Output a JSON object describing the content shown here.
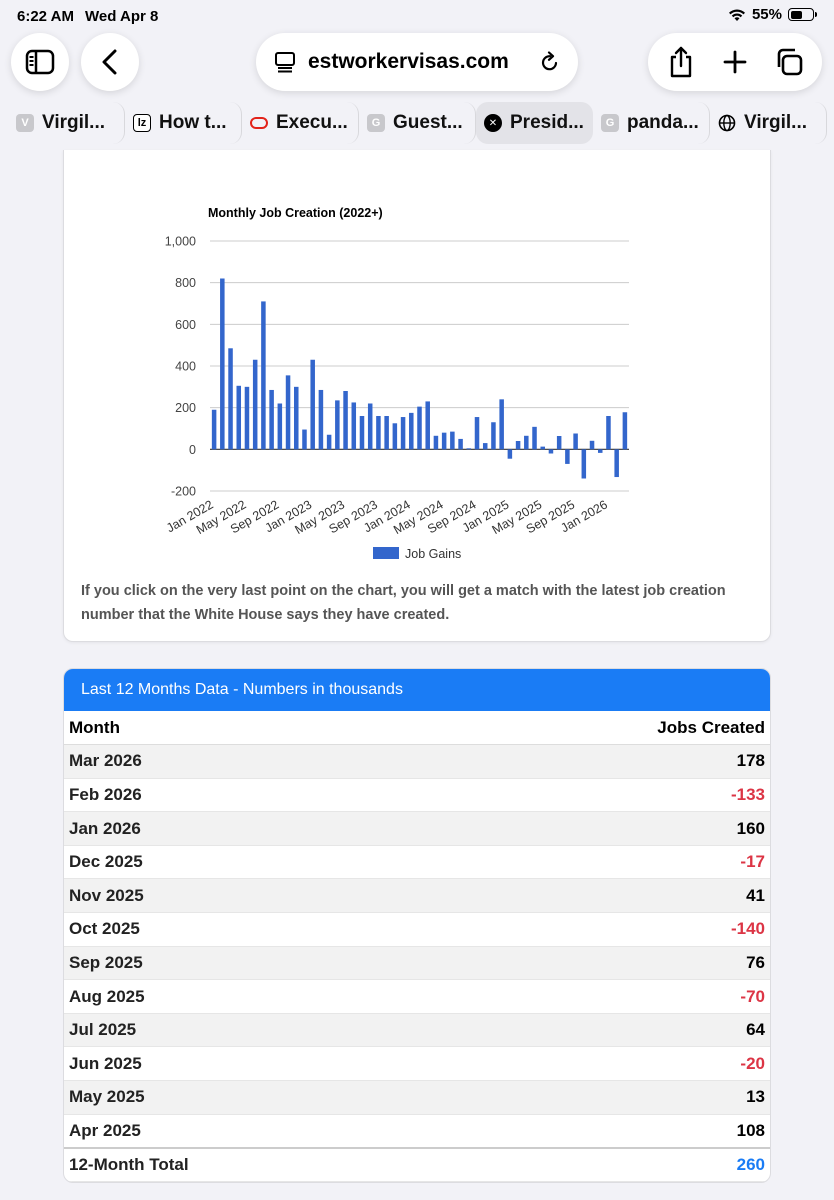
{
  "status": {
    "time": "6:22 AM",
    "date": "Wed Apr 8",
    "battery": "55%",
    "battery_level": 0.55
  },
  "browser": {
    "url": "estworkervisas.com",
    "tabs": [
      {
        "label": "Virgil...",
        "favicon": "V",
        "color": "#c8c8cc"
      },
      {
        "label": "How t...",
        "favicon": "lz",
        "color": "#ffffff"
      },
      {
        "label": "Execu...",
        "favicon": "o",
        "color": "#e2231a"
      },
      {
        "label": "Guest...",
        "favicon": "G",
        "color": "#c8c8cc"
      },
      {
        "label": "Presid...",
        "favicon": "x",
        "color": "#000000"
      },
      {
        "label": "panda...",
        "favicon": "G",
        "color": "#c8c8cc"
      },
      {
        "label": "Virgil...",
        "favicon": "globe",
        "color": "#ffffff"
      }
    ]
  },
  "chart_data": {
    "type": "bar",
    "title": "Monthly Job Creation (2022+)",
    "xlabel": "",
    "ylabel": "",
    "ylim": [
      -200,
      1000
    ],
    "yticks": [
      1000,
      800,
      600,
      400,
      200,
      0,
      -200
    ],
    "ytick_labels": [
      "1,000",
      "800",
      "600",
      "400",
      "200",
      "0",
      "-200"
    ],
    "xtick_labels": [
      "Jan 2022",
      "May 2022",
      "Sep 2022",
      "Jan 2023",
      "May 2023",
      "Sep 2023",
      "Jan 2024",
      "May 2024",
      "Sep 2024",
      "Jan 2025",
      "May 2025",
      "Sep 2025",
      "Jan 2026"
    ],
    "legend": "Job Gains",
    "series_color": "#3366cc",
    "values": [
      190,
      820,
      485,
      305,
      300,
      430,
      710,
      285,
      220,
      355,
      300,
      95,
      430,
      285,
      70,
      235,
      280,
      225,
      160,
      220,
      160,
      160,
      125,
      155,
      175,
      205,
      230,
      65,
      80,
      85,
      50,
      5,
      155,
      30,
      130,
      240,
      -45,
      40,
      65,
      108,
      13,
      -20,
      64,
      -70,
      76,
      -140,
      41,
      -17,
      160,
      -133,
      178
    ]
  },
  "caption": "If you click on the very last point on the chart, you will get a match with the latest job creation number that the White House says they have created.",
  "table": {
    "header": "Last 12 Months Data - Numbers in thousands",
    "col_month": "Month",
    "col_jobs": "Jobs Created",
    "rows": [
      {
        "month": "Mar 2026",
        "jobs": "178"
      },
      {
        "month": "Feb 2026",
        "jobs": "-133"
      },
      {
        "month": "Jan 2026",
        "jobs": "160"
      },
      {
        "month": "Dec 2025",
        "jobs": "-17"
      },
      {
        "month": "Nov 2025",
        "jobs": "41"
      },
      {
        "month": "Oct 2025",
        "jobs": "-140"
      },
      {
        "month": "Sep 2025",
        "jobs": "76"
      },
      {
        "month": "Aug 2025",
        "jobs": "-70"
      },
      {
        "month": "Jul 2025",
        "jobs": "64"
      },
      {
        "month": "Jun 2025",
        "jobs": "-20"
      },
      {
        "month": "May 2025",
        "jobs": "13"
      },
      {
        "month": "Apr 2025",
        "jobs": "108"
      }
    ],
    "total_label": "12-Month Total",
    "total_value": "260"
  },
  "colors": {
    "accent": "#1a7cf5",
    "negative": "#dc3545"
  }
}
